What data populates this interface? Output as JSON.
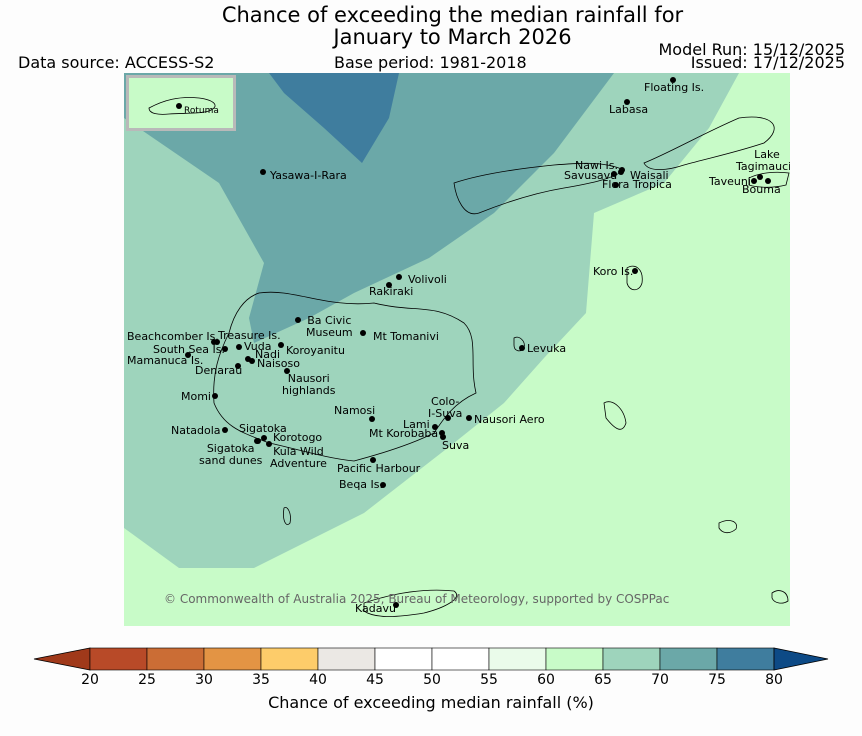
{
  "title_line1": "Chance of exceeding the median rainfall for",
  "title_line2": "January to March 2026",
  "data_source": "Data source: ACCESS-S2",
  "base_period": "Base period: 1981-2018",
  "model_run": "Model Run: 15/12/2025",
  "issued": "Issued: 17/12/2025",
  "inset_label": "Rotuma",
  "copyright": "© Commonwealth of Australia 2025, Bureau of Meteorology, supported by COSPPac",
  "colorbar": {
    "label": "Chance of exceeding median rainfall (%)",
    "ticks": [
      "20",
      "25",
      "30",
      "35",
      "40",
      "45",
      "50",
      "55",
      "60",
      "65",
      "70",
      "75",
      "80"
    ],
    "colors": [
      "#a0391a",
      "#b84a28",
      "#cb6d35",
      "#e39444",
      "#fdcc6a",
      "#ebe8e4",
      "#ffffff",
      "#ffffff",
      "#eafbea",
      "#c8fbc8",
      "#9ed4bc",
      "#6ba8a8",
      "#3f7d9e",
      "#0d4a86"
    ]
  },
  "zones": {
    "c60_65": "#c8fbc8",
    "c65_70": "#9ed4bc",
    "c70_75": "#6ba8a8",
    "c75_80": "#3f7d9e"
  },
  "places": [
    {
      "name": "Floating Is."
    },
    {
      "name": "Labasa"
    },
    {
      "name": "Nawi Is."
    },
    {
      "name": "Savusavu"
    },
    {
      "name": "Waisali"
    },
    {
      "name": "Flora Tropica"
    },
    {
      "name": "Lake Tagimaucia"
    },
    {
      "name": "Taveuni"
    },
    {
      "name": "Bouma"
    },
    {
      "name": "Yasawa-I-Rara"
    },
    {
      "name": "Koro Is."
    },
    {
      "name": "Volivoli"
    },
    {
      "name": "Rakiraki"
    },
    {
      "name": "Ba Civic Museum"
    },
    {
      "name": "Mt Tomanivi"
    },
    {
      "name": "Beachcomber Is."
    },
    {
      "name": "Treasure Is."
    },
    {
      "name": "South Sea Is."
    },
    {
      "name": "Vuda"
    },
    {
      "name": "Koroyanitu"
    },
    {
      "name": "Mamanuca Is."
    },
    {
      "name": "Nadi"
    },
    {
      "name": "Naisoso"
    },
    {
      "name": "Denarau"
    },
    {
      "name": "Levuka"
    },
    {
      "name": "Nausori highlands"
    },
    {
      "name": "Momi"
    },
    {
      "name": "Colo-I-Suva"
    },
    {
      "name": "Namosi"
    },
    {
      "name": "Lami"
    },
    {
      "name": "Nausori Aero"
    },
    {
      "name": "Mt Korobaba"
    },
    {
      "name": "Suva"
    },
    {
      "name": "Natadola"
    },
    {
      "name": "Sigatoka"
    },
    {
      "name": "Korotogo"
    },
    {
      "name": "Sigatoka sand dunes"
    },
    {
      "name": "Kula Wild Adventure"
    },
    {
      "name": "Pacific Harbour"
    },
    {
      "name": "Beqa Is."
    },
    {
      "name": "Kadavu"
    }
  ]
}
